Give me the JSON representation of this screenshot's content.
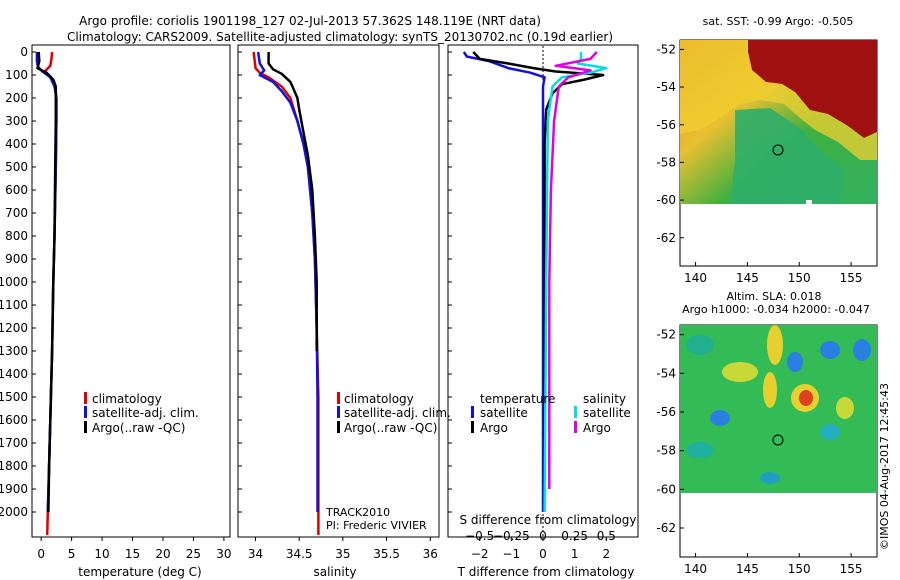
{
  "header": {
    "line1": "Argo profile: coriolis 1901198_127 02-Jul-2013 57.362S 148.119E (NRT data)",
    "line2": "Climatology: CARS2009. Satellite-adjusted climatology: synTS_20130702.nc (0.19d earlier)"
  },
  "credits": {
    "track": "TRACK2010",
    "pi": "PI: Frederic VIVIER",
    "stamp": "©IMOS 04-Aug-2017 12:45:43"
  },
  "colors": {
    "climatology": "#e00000",
    "satellite": "#1010e0",
    "argo": "#000000",
    "sal_satellite": "#00e0e0",
    "sal_argo": "#e000e0"
  },
  "chart_data": [
    {
      "id": "temperature",
      "type": "line",
      "xlabel": "temperature (deg C)",
      "xlim": [
        -1.5,
        31
      ],
      "ylim": [
        2100,
        0
      ],
      "xticks": [
        "0",
        "5",
        "10",
        "15",
        "20",
        "25",
        "30"
      ],
      "yticks": [
        "0",
        "100",
        "200",
        "300",
        "400",
        "500",
        "600",
        "700",
        "800",
        "900",
        "1000",
        "1100",
        "1200",
        "1300",
        "1400",
        "1500",
        "1600",
        "1700",
        "1800",
        "1900",
        "2000"
      ],
      "legend": [
        "climatology",
        "satellite-adj. clim.",
        "Argo(..raw -QC)"
      ],
      "series": [
        {
          "name": "climatology",
          "color": "#e00000",
          "points": [
            [
              1.8,
              0
            ],
            [
              1.7,
              30
            ],
            [
              1.5,
              60
            ],
            [
              0.6,
              85
            ],
            [
              1.6,
              110
            ],
            [
              2.3,
              150
            ],
            [
              2.5,
              200
            ],
            [
              2.5,
              300
            ],
            [
              2.4,
              500
            ],
            [
              2.2,
              800
            ],
            [
              2.0,
              1000
            ],
            [
              1.8,
              1300
            ],
            [
              1.5,
              1600
            ],
            [
              1.3,
              1800
            ],
            [
              1.1,
              2000
            ],
            [
              1.0,
              2100
            ]
          ]
        },
        {
          "name": "satellite-adj. clim.",
          "color": "#1010e0",
          "points": [
            [
              -0.7,
              0
            ],
            [
              -0.7,
              40
            ],
            [
              -0.5,
              65
            ],
            [
              0.2,
              85
            ],
            [
              1.5,
              110
            ],
            [
              2.2,
              150
            ],
            [
              2.5,
              200
            ],
            [
              2.5,
              300
            ],
            [
              2.4,
              500
            ],
            [
              2.2,
              800
            ],
            [
              2.0,
              1000
            ],
            [
              1.8,
              1300
            ],
            [
              1.5,
              1600
            ],
            [
              1.3,
              1800
            ],
            [
              1.1,
              2000
            ]
          ]
        },
        {
          "name": "Argo(..raw -QC)",
          "color": "#000000",
          "points": [
            [
              -0.4,
              0
            ],
            [
              -0.3,
              40
            ],
            [
              -0.6,
              70
            ],
            [
              0.9,
              90
            ],
            [
              2.0,
              120
            ],
            [
              2.4,
              150
            ],
            [
              2.4,
              200
            ],
            [
              2.4,
              300
            ],
            [
              2.3,
              500
            ],
            [
              2.2,
              800
            ],
            [
              2.0,
              1000
            ],
            [
              1.8,
              1300
            ],
            [
              1.5,
              1600
            ],
            [
              1.3,
              1800
            ],
            [
              1.2,
              2000
            ]
          ]
        }
      ]
    },
    {
      "id": "salinity",
      "type": "line",
      "xlabel": "salinity",
      "xlim": [
        33.8,
        36.1
      ],
      "ylim": [
        2100,
        0
      ],
      "xticks": [
        "34",
        "34.5",
        "35",
        "35.5",
        "36"
      ],
      "legend": [
        "climatology",
        "satellite-adj. clim.",
        "Argo(..raw -QC)"
      ],
      "series": [
        {
          "name": "climatology",
          "color": "#e00000",
          "points": [
            [
              33.98,
              0
            ],
            [
              34.0,
              70
            ],
            [
              34.05,
              90
            ],
            [
              34.15,
              110
            ],
            [
              34.3,
              150
            ],
            [
              34.4,
              200
            ],
            [
              34.48,
              300
            ],
            [
              34.55,
              400
            ],
            [
              34.6,
              500
            ],
            [
              34.65,
              700
            ],
            [
              34.68,
              900
            ],
            [
              34.7,
              1200
            ],
            [
              34.72,
              1500
            ],
            [
              34.72,
              1800
            ],
            [
              34.72,
              2100
            ]
          ]
        },
        {
          "name": "satellite-adj. clim.",
          "color": "#1010e0",
          "points": [
            [
              34.03,
              0
            ],
            [
              34.05,
              50
            ],
            [
              34.1,
              80
            ],
            [
              34.05,
              100
            ],
            [
              34.2,
              130
            ],
            [
              34.3,
              170
            ],
            [
              34.4,
              220
            ],
            [
              34.48,
              300
            ],
            [
              34.55,
              400
            ],
            [
              34.6,
              500
            ],
            [
              34.65,
              700
            ],
            [
              34.68,
              900
            ],
            [
              34.7,
              1200
            ],
            [
              34.71,
              1500
            ],
            [
              34.71,
              1800
            ],
            [
              34.71,
              2000
            ]
          ]
        },
        {
          "name": "Argo(..raw -QC)",
          "color": "#000000",
          "points": [
            [
              34.15,
              0
            ],
            [
              34.15,
              50
            ],
            [
              34.2,
              75
            ],
            [
              34.3,
              95
            ],
            [
              34.4,
              130
            ],
            [
              34.48,
              200
            ],
            [
              34.5,
              250
            ],
            [
              34.55,
              350
            ],
            [
              34.6,
              450
            ],
            [
              34.65,
              600
            ],
            [
              34.68,
              800
            ],
            [
              34.7,
              1000
            ],
            [
              34.7,
              1300
            ]
          ]
        }
      ]
    },
    {
      "id": "difference",
      "type": "line",
      "xlabel": "T difference from climatology",
      "xlabel2": "S difference from climatology",
      "xlim": [
        -3,
        3
      ],
      "ylim": [
        2100,
        0
      ],
      "xticks": [
        "−2",
        "−1",
        "0",
        "1",
        "2"
      ],
      "xticks_s": [
        "−0.5",
        "−0.25",
        "0",
        "0.25",
        "0.5"
      ],
      "legend_temperature_title": "temperature",
      "legend_salinity_title": "salinity",
      "legend_temperature": [
        "satellite",
        "Argo"
      ],
      "legend_salinity": [
        "satellite",
        "Argo"
      ],
      "series": [
        {
          "name": "T satellite",
          "color": "#1010e0",
          "points": [
            [
              -2.5,
              0
            ],
            [
              -2.4,
              20
            ],
            [
              -1.7,
              40
            ],
            [
              -1.1,
              70
            ],
            [
              -0.4,
              90
            ],
            [
              0.05,
              110
            ],
            [
              0.0,
              150
            ],
            [
              0.0,
              300
            ],
            [
              0.0,
              1000
            ],
            [
              0.0,
              2000
            ]
          ]
        },
        {
          "name": "T Argo",
          "color": "#000000",
          "points": [
            [
              -2.2,
              0
            ],
            [
              -2.0,
              30
            ],
            [
              -1.1,
              50
            ],
            [
              -0.3,
              70
            ],
            [
              0.4,
              85
            ],
            [
              1.9,
              100
            ],
            [
              1.3,
              120
            ],
            [
              0.6,
              140
            ],
            [
              0.3,
              180
            ],
            [
              0.1,
              250
            ],
            [
              0.05,
              400
            ],
            [
              0.05,
              1000
            ],
            [
              0.05,
              1900
            ]
          ]
        },
        {
          "name": "S satellite",
          "color": "#00e0e0",
          "points": [
            [
              1.2,
              0
            ],
            [
              1.2,
              30
            ],
            [
              1.1,
              50
            ],
            [
              2.0,
              70
            ],
            [
              1.5,
              90
            ],
            [
              0.6,
              110
            ],
            [
              0.3,
              150
            ],
            [
              0.15,
              300
            ],
            [
              0.1,
              1000
            ],
            [
              0.05,
              2000
            ]
          ]
        },
        {
          "name": "S Argo",
          "color": "#e000e0",
          "points": [
            [
              1.7,
              0
            ],
            [
              1.5,
              30
            ],
            [
              0.4,
              60
            ],
            [
              1.5,
              80
            ],
            [
              0.8,
              110
            ],
            [
              0.5,
              150
            ],
            [
              0.35,
              300
            ],
            [
              0.25,
              600
            ],
            [
              0.2,
              1000
            ],
            [
              0.2,
              1900
            ]
          ]
        }
      ]
    },
    {
      "id": "sst_map",
      "type": "heatmap",
      "title": "sat. SST: -0.99 Argo: -0.505",
      "xlim": [
        138.5,
        157.5
      ],
      "ylim": [
        -63.5,
        -51.5
      ],
      "xticks": [
        "140",
        "145",
        "150",
        "155"
      ],
      "yticks": [
        "-52",
        "-54",
        "-56",
        "-58",
        "-60",
        "-62"
      ],
      "marker": [
        148.119,
        -57.362
      ]
    },
    {
      "id": "sla_map",
      "type": "heatmap",
      "title": "Altim. SLA: 0.018",
      "subtitle": "Argo h1000: -0.034 h2000: -0.047",
      "xlim": [
        138.5,
        157.5
      ],
      "ylim": [
        -63.5,
        -51.5
      ],
      "xticks": [
        "140",
        "145",
        "150",
        "155"
      ],
      "yticks": [
        "-52",
        "-54",
        "-56",
        "-58",
        "-60",
        "-62"
      ],
      "marker": [
        148.119,
        -57.362
      ]
    }
  ]
}
